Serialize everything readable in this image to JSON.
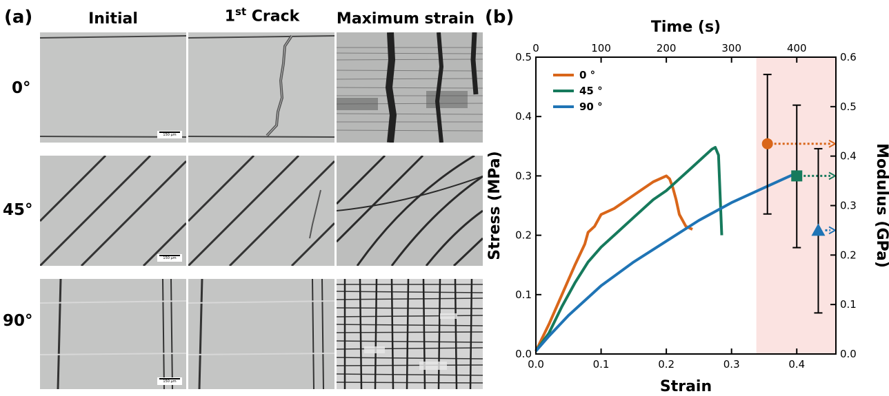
{
  "panel_a": {
    "label": "(a)",
    "columns": [
      "Initial",
      "1st Crack",
      "Maximum strain"
    ],
    "rows": [
      "0°",
      "45°",
      "90°"
    ],
    "scale_bar_text": "150 µm"
  },
  "panel_b": {
    "label": "(b)"
  },
  "chart_data": {
    "type": "line",
    "title": "",
    "xlabel": "Strain",
    "ylabel": "Stress (MPa)",
    "x2label": "Time (s)",
    "y2label": "Modulus (GPa)",
    "xlim": [
      0,
      0.46
    ],
    "ylim": [
      0,
      0.5
    ],
    "x2lim": [
      0,
      460
    ],
    "y2lim": [
      0,
      0.6
    ],
    "xticks": [
      0.0,
      0.1,
      0.2,
      0.3,
      0.4
    ],
    "xticklabels": [
      "0.0",
      "0.1",
      "0.2",
      "0.3",
      "0.4"
    ],
    "yticks": [
      0.0,
      0.1,
      0.2,
      0.3,
      0.4,
      0.5
    ],
    "yticklabels": [
      "0.0",
      "0.1",
      "0.2",
      "0.3",
      "0.4",
      "0.5"
    ],
    "x2ticks": [
      0,
      100,
      200,
      300,
      400
    ],
    "x2ticklabels": [
      "0",
      "100",
      "200",
      "300",
      "400"
    ],
    "y2ticks": [
      0.0,
      0.1,
      0.2,
      0.3,
      0.4,
      0.5,
      0.6
    ],
    "y2ticklabels": [
      "0.0",
      "0.1",
      "0.2",
      "0.3",
      "0.4",
      "0.5",
      "0.6"
    ],
    "legend_position": "top-left",
    "shaded_region": {
      "x_start": 0.338,
      "x_end": 0.46,
      "color": "#fbe3e1"
    },
    "series": [
      {
        "name": "0 °",
        "color": "#d9661a",
        "x": [
          0.0,
          0.02,
          0.04,
          0.06,
          0.075,
          0.08,
          0.09,
          0.1,
          0.12,
          0.14,
          0.16,
          0.18,
          0.19,
          0.2,
          0.205,
          0.21,
          0.215,
          0.22,
          0.23,
          0.24
        ],
        "y": [
          0.005,
          0.05,
          0.1,
          0.15,
          0.185,
          0.205,
          0.215,
          0.235,
          0.245,
          0.26,
          0.275,
          0.29,
          0.295,
          0.3,
          0.295,
          0.28,
          0.26,
          0.235,
          0.215,
          0.21
        ]
      },
      {
        "name": "45 °",
        "color": "#167a5c",
        "x": [
          0.0,
          0.02,
          0.04,
          0.06,
          0.08,
          0.1,
          0.12,
          0.15,
          0.18,
          0.2,
          0.22,
          0.24,
          0.26,
          0.27,
          0.275,
          0.28,
          0.282,
          0.285
        ],
        "y": [
          0.005,
          0.035,
          0.08,
          0.12,
          0.155,
          0.18,
          0.2,
          0.23,
          0.26,
          0.275,
          0.295,
          0.315,
          0.335,
          0.345,
          0.348,
          0.335,
          0.28,
          0.2
        ]
      },
      {
        "name": "90 °",
        "color": "#1f74b5",
        "x": [
          0.0,
          0.02,
          0.05,
          0.1,
          0.15,
          0.2,
          0.25,
          0.3,
          0.35,
          0.4
        ],
        "y": [
          0.005,
          0.03,
          0.065,
          0.115,
          0.155,
          0.19,
          0.225,
          0.255,
          0.28,
          0.305
        ]
      }
    ],
    "modulus_points": [
      {
        "name": "0 °",
        "color": "#d9661a",
        "marker": "circle",
        "x": 0.355,
        "modulus": 0.425,
        "err_low": 0.283,
        "err_high": 0.565
      },
      {
        "name": "45 °",
        "color": "#167a5c",
        "marker": "square",
        "x": 0.4,
        "modulus": 0.36,
        "err_low": 0.215,
        "err_high": 0.503
      },
      {
        "name": "90 °",
        "color": "#1f74b5",
        "marker": "triangle",
        "x": 0.433,
        "modulus": 0.25,
        "err_low": 0.083,
        "err_high": 0.415
      }
    ]
  }
}
